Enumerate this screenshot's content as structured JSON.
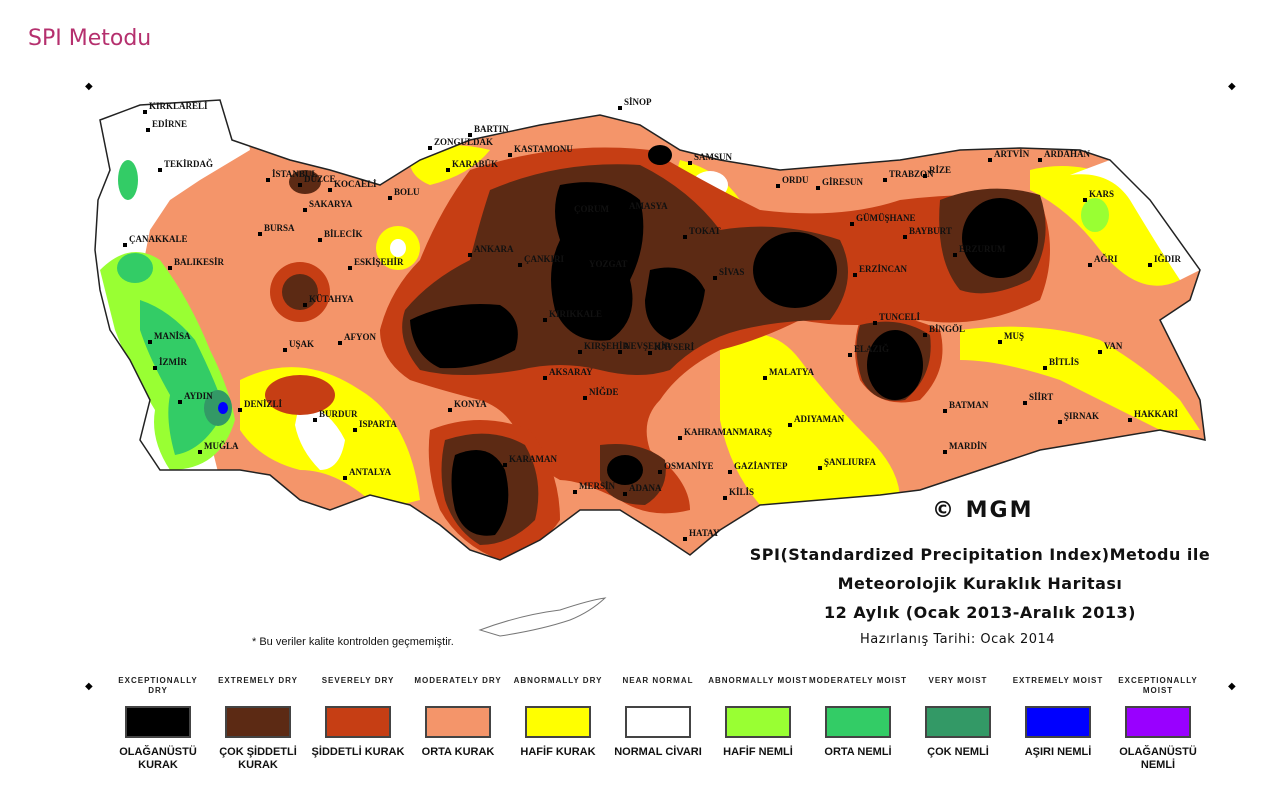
{
  "page_title": "SPI Metodu",
  "map": {
    "copyright": "© MGM",
    "title_line1": "SPI(Standardized Precipitation Index)Metodu ile",
    "title_line2": "Meteorolojik Kuraklık Haritası",
    "title_line3": "12 Aylık (Ocak 2013-Aralık 2013)",
    "prepared_date": "Hazırlanış Tarihi: Ocak 2014",
    "quality_note": "* Bu veriler kalite kontrolden geçmemiştir.",
    "cities": [
      {
        "name": "KIRKLARELİ"
      },
      {
        "name": "EDİRNE"
      },
      {
        "name": "TEKİRDAĞ"
      },
      {
        "name": "İSTANBUL"
      },
      {
        "name": "KOCAELİ"
      },
      {
        "name": "SAKARYA"
      },
      {
        "name": "DÜZCE"
      },
      {
        "name": "BOLU"
      },
      {
        "name": "ZONGULDAK"
      },
      {
        "name": "BARTIN"
      },
      {
        "name": "KARABÜK"
      },
      {
        "name": "KASTAMONU"
      },
      {
        "name": "SİNOP"
      },
      {
        "name": "SAMSUN"
      },
      {
        "name": "ORDU"
      },
      {
        "name": "GİRESUN"
      },
      {
        "name": "TRABZON"
      },
      {
        "name": "RİZE"
      },
      {
        "name": "ARTVİN"
      },
      {
        "name": "ARDAHAN"
      },
      {
        "name": "KARS"
      },
      {
        "name": "AĞRI"
      },
      {
        "name": "IĞDIR"
      },
      {
        "name": "ÇANAKKALE"
      },
      {
        "name": "BALIKESİR"
      },
      {
        "name": "BURSA"
      },
      {
        "name": "BİLECİK"
      },
      {
        "name": "ESKİŞEHİR"
      },
      {
        "name": "KÜTAHYA"
      },
      {
        "name": "ANKARA"
      },
      {
        "name": "ÇANKIRI"
      },
      {
        "name": "ÇORUM"
      },
      {
        "name": "AMASYA"
      },
      {
        "name": "TOKAT"
      },
      {
        "name": "YOZGAT"
      },
      {
        "name": "KIRIKKALE"
      },
      {
        "name": "SİVAS"
      },
      {
        "name": "GÜMÜŞHANE"
      },
      {
        "name": "BAYBURT"
      },
      {
        "name": "ERZİNCAN"
      },
      {
        "name": "ERZURUM"
      },
      {
        "name": "TUNCELİ"
      },
      {
        "name": "BİNGÖL"
      },
      {
        "name": "MUŞ"
      },
      {
        "name": "ELAZIĞ"
      },
      {
        "name": "MALATYA"
      },
      {
        "name": "VAN"
      },
      {
        "name": "BİTLİS"
      },
      {
        "name": "MANİSA"
      },
      {
        "name": "İZMİR"
      },
      {
        "name": "UŞAK"
      },
      {
        "name": "AFYON"
      },
      {
        "name": "KIRŞEHİR"
      },
      {
        "name": "NEVŞEHİR"
      },
      {
        "name": "KAYSERİ"
      },
      {
        "name": "AKSARAY"
      },
      {
        "name": "AYDIN"
      },
      {
        "name": "DENİZLİ"
      },
      {
        "name": "BURDUR"
      },
      {
        "name": "ISPARTA"
      },
      {
        "name": "KONYA"
      },
      {
        "name": "NİĞDE"
      },
      {
        "name": "KAHRAMANMARAŞ"
      },
      {
        "name": "ADIYAMAN"
      },
      {
        "name": "BATMAN"
      },
      {
        "name": "SİİRT"
      },
      {
        "name": "ŞIRNAK"
      },
      {
        "name": "HAKKARİ"
      },
      {
        "name": "MUĞLA"
      },
      {
        "name": "ANTALYA"
      },
      {
        "name": "KARAMAN"
      },
      {
        "name": "MERSİN"
      },
      {
        "name": "ADANA"
      },
      {
        "name": "OSMANİYE"
      },
      {
        "name": "GAZİANTEP"
      },
      {
        "name": "ŞANLIURFA"
      },
      {
        "name": "MARDİN"
      },
      {
        "name": "KİLİS"
      },
      {
        "name": "HATAY"
      }
    ]
  },
  "legend": [
    {
      "en": "EXCEPTIONALLY DRY",
      "tr": "OLAĞANÜSTÜ KURAK",
      "color": "#000000"
    },
    {
      "en": "EXTREMELY DRY",
      "tr": "ÇOK ŞİDDETLİ KURAK",
      "color": "#5c2a14"
    },
    {
      "en": "SEVERELY DRY",
      "tr": "ŞİDDETLİ KURAK",
      "color": "#c63e14"
    },
    {
      "en": "MODERATELY DRY",
      "tr": "ORTA KURAK",
      "color": "#f4956a"
    },
    {
      "en": "ABNORMALLY DRY",
      "tr": "HAFİF KURAK",
      "color": "#ffff00"
    },
    {
      "en": "NEAR NORMAL",
      "tr": "NORMAL CİVARI",
      "color": "#ffffff"
    },
    {
      "en": "ABNORMALLY MOIST",
      "tr": "HAFİF NEMLİ",
      "color": "#99ff33"
    },
    {
      "en": "MODERATELY MOIST",
      "tr": "ORTA NEMLİ",
      "color": "#33cc66"
    },
    {
      "en": "VERY MOIST",
      "tr": "ÇOK NEMLİ",
      "color": "#339966"
    },
    {
      "en": "EXTREMELY MOIST",
      "tr": "AŞIRI NEMLİ",
      "color": "#0000ff"
    },
    {
      "en": "EXCEPTIONALLY MOIST",
      "tr": "OLAĞANÜSTÜ NEMLİ",
      "color": "#9900ff"
    }
  ]
}
